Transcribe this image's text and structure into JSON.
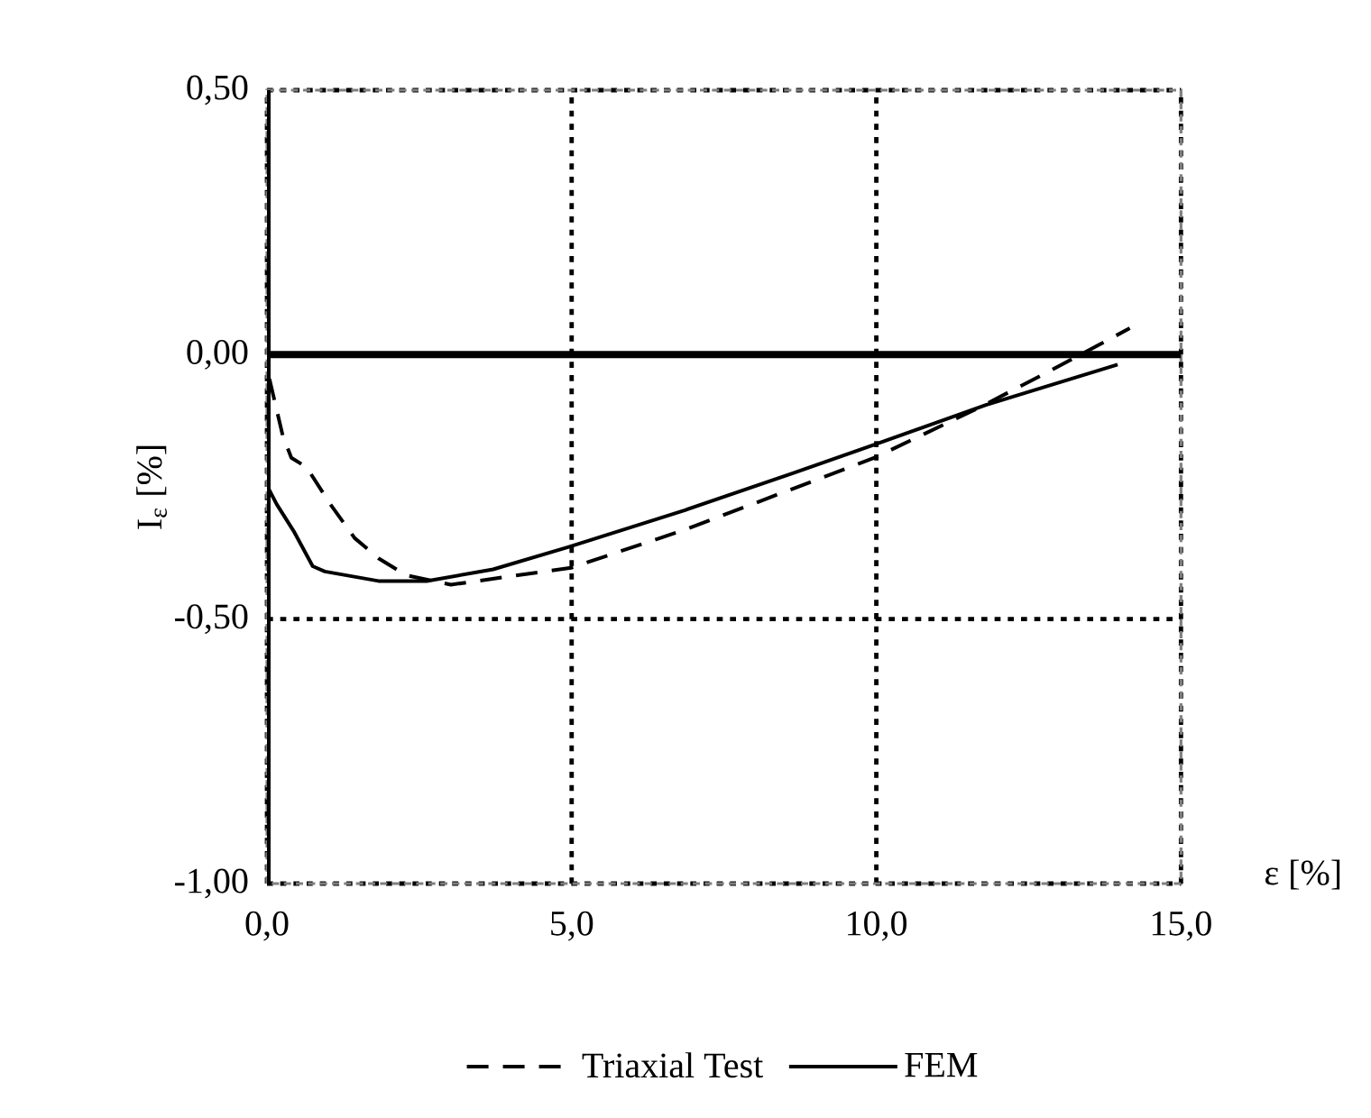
{
  "chart_data": {
    "type": "line",
    "xlabel": "ε [%]",
    "ylabel": "I$_{ε}$ [%]",
    "xlim": [
      0,
      15
    ],
    "ylim": [
      -1,
      0.5
    ],
    "xticks": [
      {
        "value": 0,
        "label": "0,0"
      },
      {
        "value": 5,
        "label": "5,0"
      },
      {
        "value": 10,
        "label": "10,0"
      },
      {
        "value": 15,
        "label": "15,0"
      }
    ],
    "yticks": [
      {
        "value": -1,
        "label": "-1,00"
      },
      {
        "value": -0.5,
        "label": "-0,50"
      },
      {
        "value": 0,
        "label": "0,00"
      },
      {
        "value": 0.5,
        "label": "0,50"
      }
    ],
    "grid": true,
    "legend": "bottom",
    "marker": "none",
    "ref_lines": [
      {
        "axis": "y",
        "value": 0,
        "color": "#000000"
      }
    ],
    "series": [
      {
        "name": "Triaxial Test",
        "color": "#000000",
        "line_style": "dashed",
        "x": [
          0.04,
          0.26,
          0.4,
          0.65,
          1.04,
          1.44,
          1.83,
          2.28,
          3.02,
          4.99,
          6.86,
          9.97,
          11.69,
          12.78,
          13.92,
          14.16
        ],
        "values": [
          -0.046,
          -0.154,
          -0.195,
          -0.213,
          -0.283,
          -0.347,
          -0.385,
          -0.417,
          -0.435,
          -0.403,
          -0.331,
          -0.195,
          -0.1,
          -0.035,
          0.035,
          0.05
        ]
      },
      {
        "name": "FEM",
        "color": "#000000",
        "line_style": "solid",
        "x": [
          0,
          0.01,
          0.16,
          0.45,
          0.75,
          0.95,
          1.83,
          2.62,
          3.71,
          4.94,
          6.86,
          8.64,
          9.97,
          11.8,
          13.96
        ],
        "values": [
          0,
          -0.25,
          -0.283,
          -0.336,
          -0.4,
          -0.41,
          -0.428,
          -0.428,
          -0.406,
          -0.364,
          -0.294,
          -0.224,
          -0.17,
          -0.095,
          -0.019
        ]
      }
    ]
  }
}
